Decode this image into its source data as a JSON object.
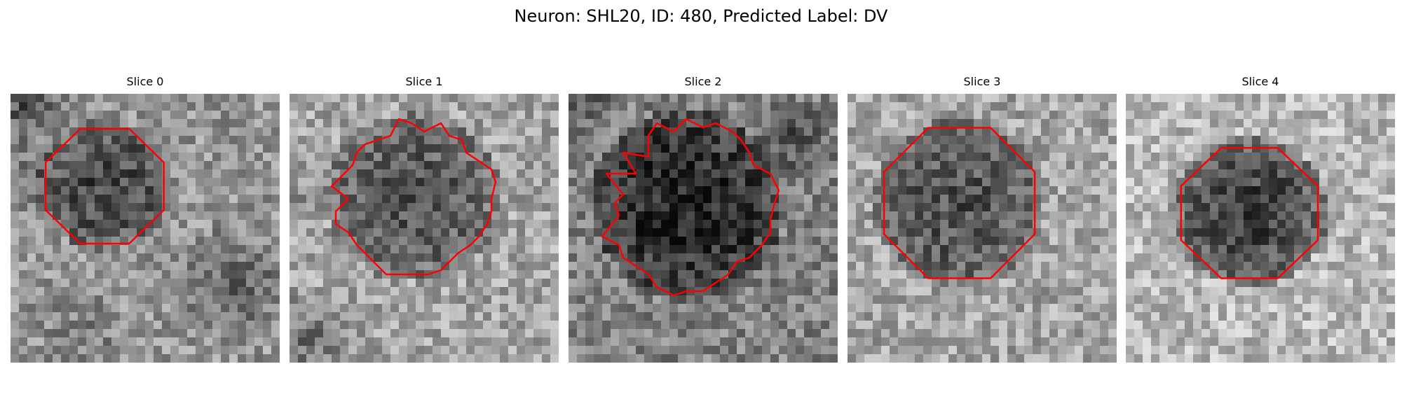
{
  "figure": {
    "title": "Neuron: SHL20, ID: 480, Predicted Label: DV"
  },
  "colors": {
    "contour": "#ff0000",
    "background": "#ffffff",
    "colormap": "grayscale"
  },
  "panels": [
    {
      "title": "Slice 0",
      "image": "noisy grayscale microscopy tile with a roughly circular dark neuron cell body outlined by a red contour"
    },
    {
      "title": "Slice 1",
      "image": "noisy grayscale microscopy tile with a roughly circular dark neuron cell body outlined by a red contour"
    },
    {
      "title": "Slice 2",
      "image": "noisy grayscale microscopy tile with a roughly circular dark neuron cell body outlined by a red contour"
    },
    {
      "title": "Slice 3",
      "image": "noisy grayscale microscopy tile with a roughly circular dark neuron cell body outlined by a red contour"
    },
    {
      "title": "Slice 4",
      "image": "noisy grayscale microscopy tile with a roughly circular dark neuron cell body outlined by a red contour"
    }
  ]
}
